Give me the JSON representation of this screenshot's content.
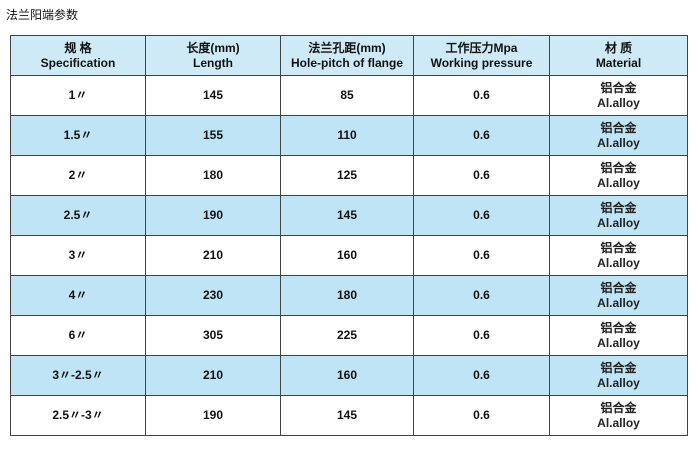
{
  "title": "法兰阳端参数",
  "table": {
    "header": [
      [
        "规 格",
        "Specification"
      ],
      [
        "长度(mm)",
        "Length"
      ],
      [
        "法兰孔距(mm)",
        "Hole-pitch of flange"
      ],
      [
        "工作压力Mpa",
        "Working pressure"
      ],
      [
        "材 质",
        "Material"
      ]
    ],
    "rows": [
      [
        "1〃",
        145,
        85,
        0.6,
        "铝合金",
        "Al.alloy"
      ],
      [
        "1.5〃",
        155,
        110,
        0.6,
        "铝合金",
        "Al.alloy"
      ],
      [
        "2〃",
        180,
        125,
        0.6,
        "铝合金",
        "Al.alloy"
      ],
      [
        "2.5〃",
        190,
        145,
        0.6,
        "铝合金",
        "Al.alloy"
      ],
      [
        "3〃",
        210,
        160,
        0.6,
        "铝合金",
        "Al.alloy"
      ],
      [
        "4〃",
        230,
        180,
        0.6,
        "铝合金",
        "Al.alloy"
      ],
      [
        "6〃",
        305,
        225,
        0.6,
        "铝合金",
        "Al.alloy"
      ],
      [
        "3〃-2.5〃",
        210,
        160,
        0.6,
        "铝合金",
        "Al.alloy"
      ],
      [
        "2.5〃-3〃",
        190,
        145,
        0.6,
        "铝合金",
        "Al.alloy"
      ]
    ]
  }
}
